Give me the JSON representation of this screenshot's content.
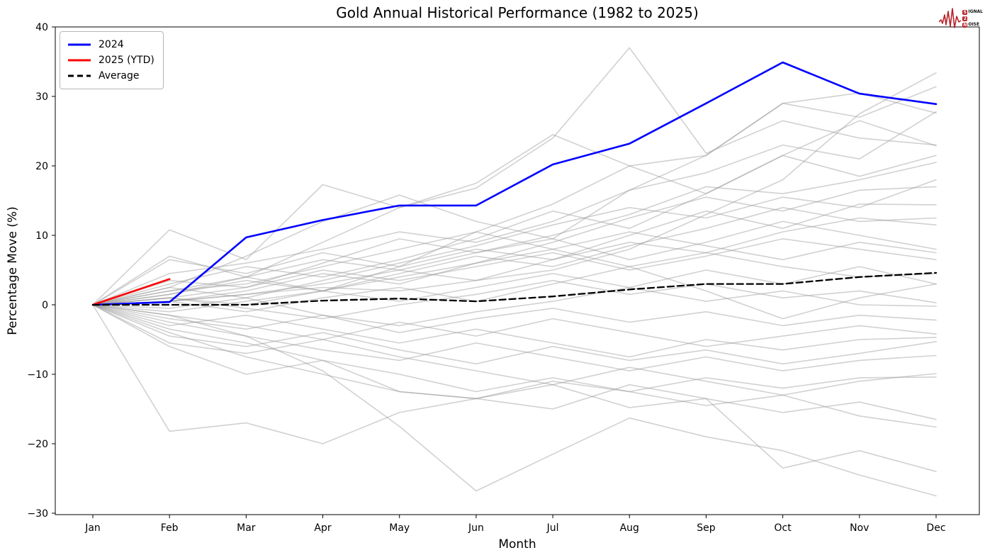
{
  "title": "Gold Annual Historical Performance (1982 to 2025)",
  "xlabel": "Month",
  "ylabel": "Percentage Move (%)",
  "watermark": {
    "name": "Signal 2 Noise logo",
    "line1_boxed": "S",
    "line1_rest": "IGNAL",
    "line2_boxed": "2",
    "line2_rest": "",
    "line3_boxed": "N",
    "line3_rest": "OISE",
    "accent_color": "#b8232a"
  },
  "legend": {
    "position": "upper left",
    "items": [
      {
        "label": "2024",
        "color": "#0000ff",
        "dash": "solid"
      },
      {
        "label": "2025 (YTD)",
        "color": "#ff0000",
        "dash": "solid"
      },
      {
        "label": "Average",
        "color": "#000000",
        "dash": "dashed"
      }
    ]
  },
  "chart_data": {
    "type": "line",
    "x_categories": [
      "Jan",
      "Feb",
      "Mar",
      "Apr",
      "May",
      "Jun",
      "Jul",
      "Aug",
      "Sep",
      "Oct",
      "Nov",
      "Dec"
    ],
    "xlabel": "Month",
    "ylabel": "Percentage Move (%)",
    "ylim": [
      -30,
      40
    ],
    "y_ticks": [
      40,
      30,
      20,
      10,
      0,
      -10,
      -20,
      -30
    ],
    "grid": false,
    "legend_position": "upper left",
    "colors": {
      "y2024": "#0000ff",
      "y2025": "#ff0000",
      "average": "#000000",
      "history": "#9a9a9a"
    },
    "series": [
      {
        "name": "2024",
        "color": "#0000ff",
        "style": "solid",
        "width": 2.6,
        "values": [
          0,
          0.4,
          9.7,
          12.2,
          14.3,
          14.3,
          20.2,
          23.2,
          29.0,
          34.9,
          30.4,
          28.9
        ]
      },
      {
        "name": "2025 (YTD)",
        "color": "#ff0000",
        "style": "solid",
        "width": 2.6,
        "values": [
          0,
          3.7,
          null,
          null,
          null,
          null,
          null,
          null,
          null,
          null,
          null,
          null
        ]
      },
      {
        "name": "Average",
        "color": "#000000",
        "style": "dashed",
        "width": 2.3,
        "values": [
          0,
          0.0,
          0.0,
          0.6,
          0.9,
          0.5,
          1.2,
          2.2,
          3.0,
          3.0,
          4.0,
          4.6
        ]
      }
    ],
    "background_series_note": "Unlabeled gray lines: individual years 1982-2023 (approximate traces)",
    "background_series": [
      [
        0,
        10.8,
        6.5,
        17.3,
        14.0,
        17.5,
        24.5,
        20.0,
        21.5,
        29.0,
        27.0,
        31.4
      ],
      [
        0,
        1.5,
        4.0,
        9.0,
        14.0,
        16.8,
        24.0,
        37.0,
        21.8,
        26.5,
        24.0,
        23.0
      ],
      [
        0,
        0.5,
        1.5,
        2.5,
        2.0,
        3.5,
        5.0,
        8.0,
        13.0,
        18.0,
        27.5,
        33.4
      ],
      [
        0,
        4.5,
        6.0,
        8.0,
        10.5,
        9.0,
        12.0,
        16.5,
        21.5,
        29.0,
        30.5,
        27.6
      ],
      [
        0,
        2.0,
        3.0,
        5.5,
        8.0,
        10.5,
        14.5,
        20.0,
        16.0,
        21.5,
        26.5,
        22.9
      ],
      [
        0,
        3.0,
        5.5,
        4.0,
        6.5,
        9.5,
        13.5,
        11.0,
        16.0,
        21.5,
        18.5,
        21.5
      ],
      [
        0,
        1.0,
        2.5,
        6.0,
        9.5,
        7.5,
        10.0,
        13.0,
        17.0,
        16.0,
        18.0,
        20.5
      ],
      [
        0,
        2.5,
        1.0,
        3.5,
        6.0,
        8.5,
        11.5,
        14.0,
        12.5,
        15.5,
        14.0,
        18.0
      ],
      [
        0,
        0.5,
        2.0,
        4.5,
        3.0,
        6.0,
        9.0,
        12.5,
        15.5,
        13.5,
        16.5,
        17.0
      ],
      [
        0,
        6.5,
        4.5,
        7.5,
        5.5,
        8.0,
        6.5,
        10.0,
        13.5,
        11.0,
        14.5,
        14.4
      ],
      [
        0,
        1.5,
        3.5,
        2.0,
        4.5,
        7.0,
        5.5,
        8.5,
        11.0,
        14.0,
        12.0,
        12.5
      ],
      [
        0,
        0.5,
        1.5,
        3.0,
        5.0,
        3.5,
        6.5,
        9.0,
        7.5,
        10.5,
        12.5,
        11.5
      ],
      [
        0,
        2.5,
        7.0,
        12.0,
        15.8,
        12.0,
        9.5,
        16.5,
        19.0,
        23.0,
        21.0,
        27.8
      ],
      [
        0,
        2.0,
        4.0,
        6.5,
        5.0,
        7.5,
        9.5,
        6.5,
        9.0,
        12.0,
        10.0,
        8.0
      ],
      [
        0,
        1.0,
        0.0,
        2.0,
        4.0,
        6.0,
        8.0,
        10.5,
        8.5,
        6.5,
        9.0,
        7.5
      ],
      [
        0,
        3.5,
        2.5,
        5.0,
        3.5,
        5.5,
        7.5,
        5.0,
        7.0,
        9.5,
        8.0,
        6.5
      ],
      [
        0,
        0.5,
        -1.0,
        1.0,
        2.5,
        0.5,
        3.0,
        5.5,
        7.5,
        5.5,
        4.0,
        4.5
      ],
      [
        0,
        -1.0,
        0.5,
        2.0,
        0.5,
        2.5,
        4.5,
        2.5,
        5.0,
        3.0,
        5.5,
        3.0
      ],
      [
        0,
        7.0,
        4.0,
        2.0,
        5.5,
        10.5,
        8.0,
        5.5,
        2.0,
        -2.0,
        1.0,
        3.0
      ],
      [
        0,
        1.0,
        -0.5,
        -2.0,
        0.0,
        1.5,
        3.5,
        1.5,
        3.0,
        1.0,
        2.0,
        0.3
      ],
      [
        0,
        -0.5,
        1.0,
        -1.5,
        -3.0,
        -1.0,
        0.5,
        2.5,
        0.5,
        2.0,
        0.0,
        -0.2
      ],
      [
        0,
        -2.0,
        -3.5,
        -1.5,
        -4.0,
        -2.0,
        -0.5,
        -2.5,
        -1.0,
        -3.0,
        -1.5,
        -2.2
      ],
      [
        0,
        -1.5,
        -3.0,
        -5.0,
        -2.5,
        -4.5,
        -2.0,
        -4.0,
        -6.0,
        -4.5,
        -3.0,
        -4.2
      ],
      [
        0,
        -3.0,
        -1.5,
        -3.5,
        -5.5,
        -3.5,
        -5.5,
        -7.5,
        -5.0,
        -6.5,
        -5.0,
        -4.7
      ],
      [
        0,
        -4.5,
        -6.0,
        -4.0,
        -6.5,
        -8.5,
        -6.0,
        -8.0,
        -6.5,
        -8.5,
        -7.0,
        -5.3
      ],
      [
        0,
        -2.5,
        -4.5,
        -6.5,
        -8.0,
        -5.5,
        -7.5,
        -9.5,
        -7.5,
        -9.5,
        -8.0,
        -7.3
      ],
      [
        0,
        -5.5,
        -7.0,
        -5.0,
        -7.5,
        -9.5,
        -11.5,
        -9.0,
        -11.0,
        -13.0,
        -11.0,
        -9.9
      ],
      [
        0,
        -3.5,
        -5.5,
        -8.0,
        -10.0,
        -12.5,
        -10.5,
        -12.5,
        -10.5,
        -12.0,
        -10.5,
        -10.4
      ],
      [
        0,
        -18.2,
        -17.0,
        -20.0,
        -15.5,
        -13.5,
        -11.0,
        -12.5,
        -14.5,
        -13.0,
        -16.0,
        -17.6
      ],
      [
        0,
        -6.0,
        -10.0,
        -8.0,
        -12.5,
        -13.5,
        -11.5,
        -14.8,
        -13.5,
        -15.5,
        -14.0,
        -16.5
      ],
      [
        0,
        -1.5,
        -4.5,
        -9.5,
        -17.5,
        -26.8,
        -21.5,
        -16.3,
        -19.0,
        -21.0,
        -24.5,
        -27.5
      ],
      [
        0,
        -4.0,
        -7.5,
        -10.0,
        -12.5,
        -13.5,
        -15.0,
        -11.5,
        -13.5,
        -23.5,
        -21.0,
        -24.0
      ]
    ]
  }
}
